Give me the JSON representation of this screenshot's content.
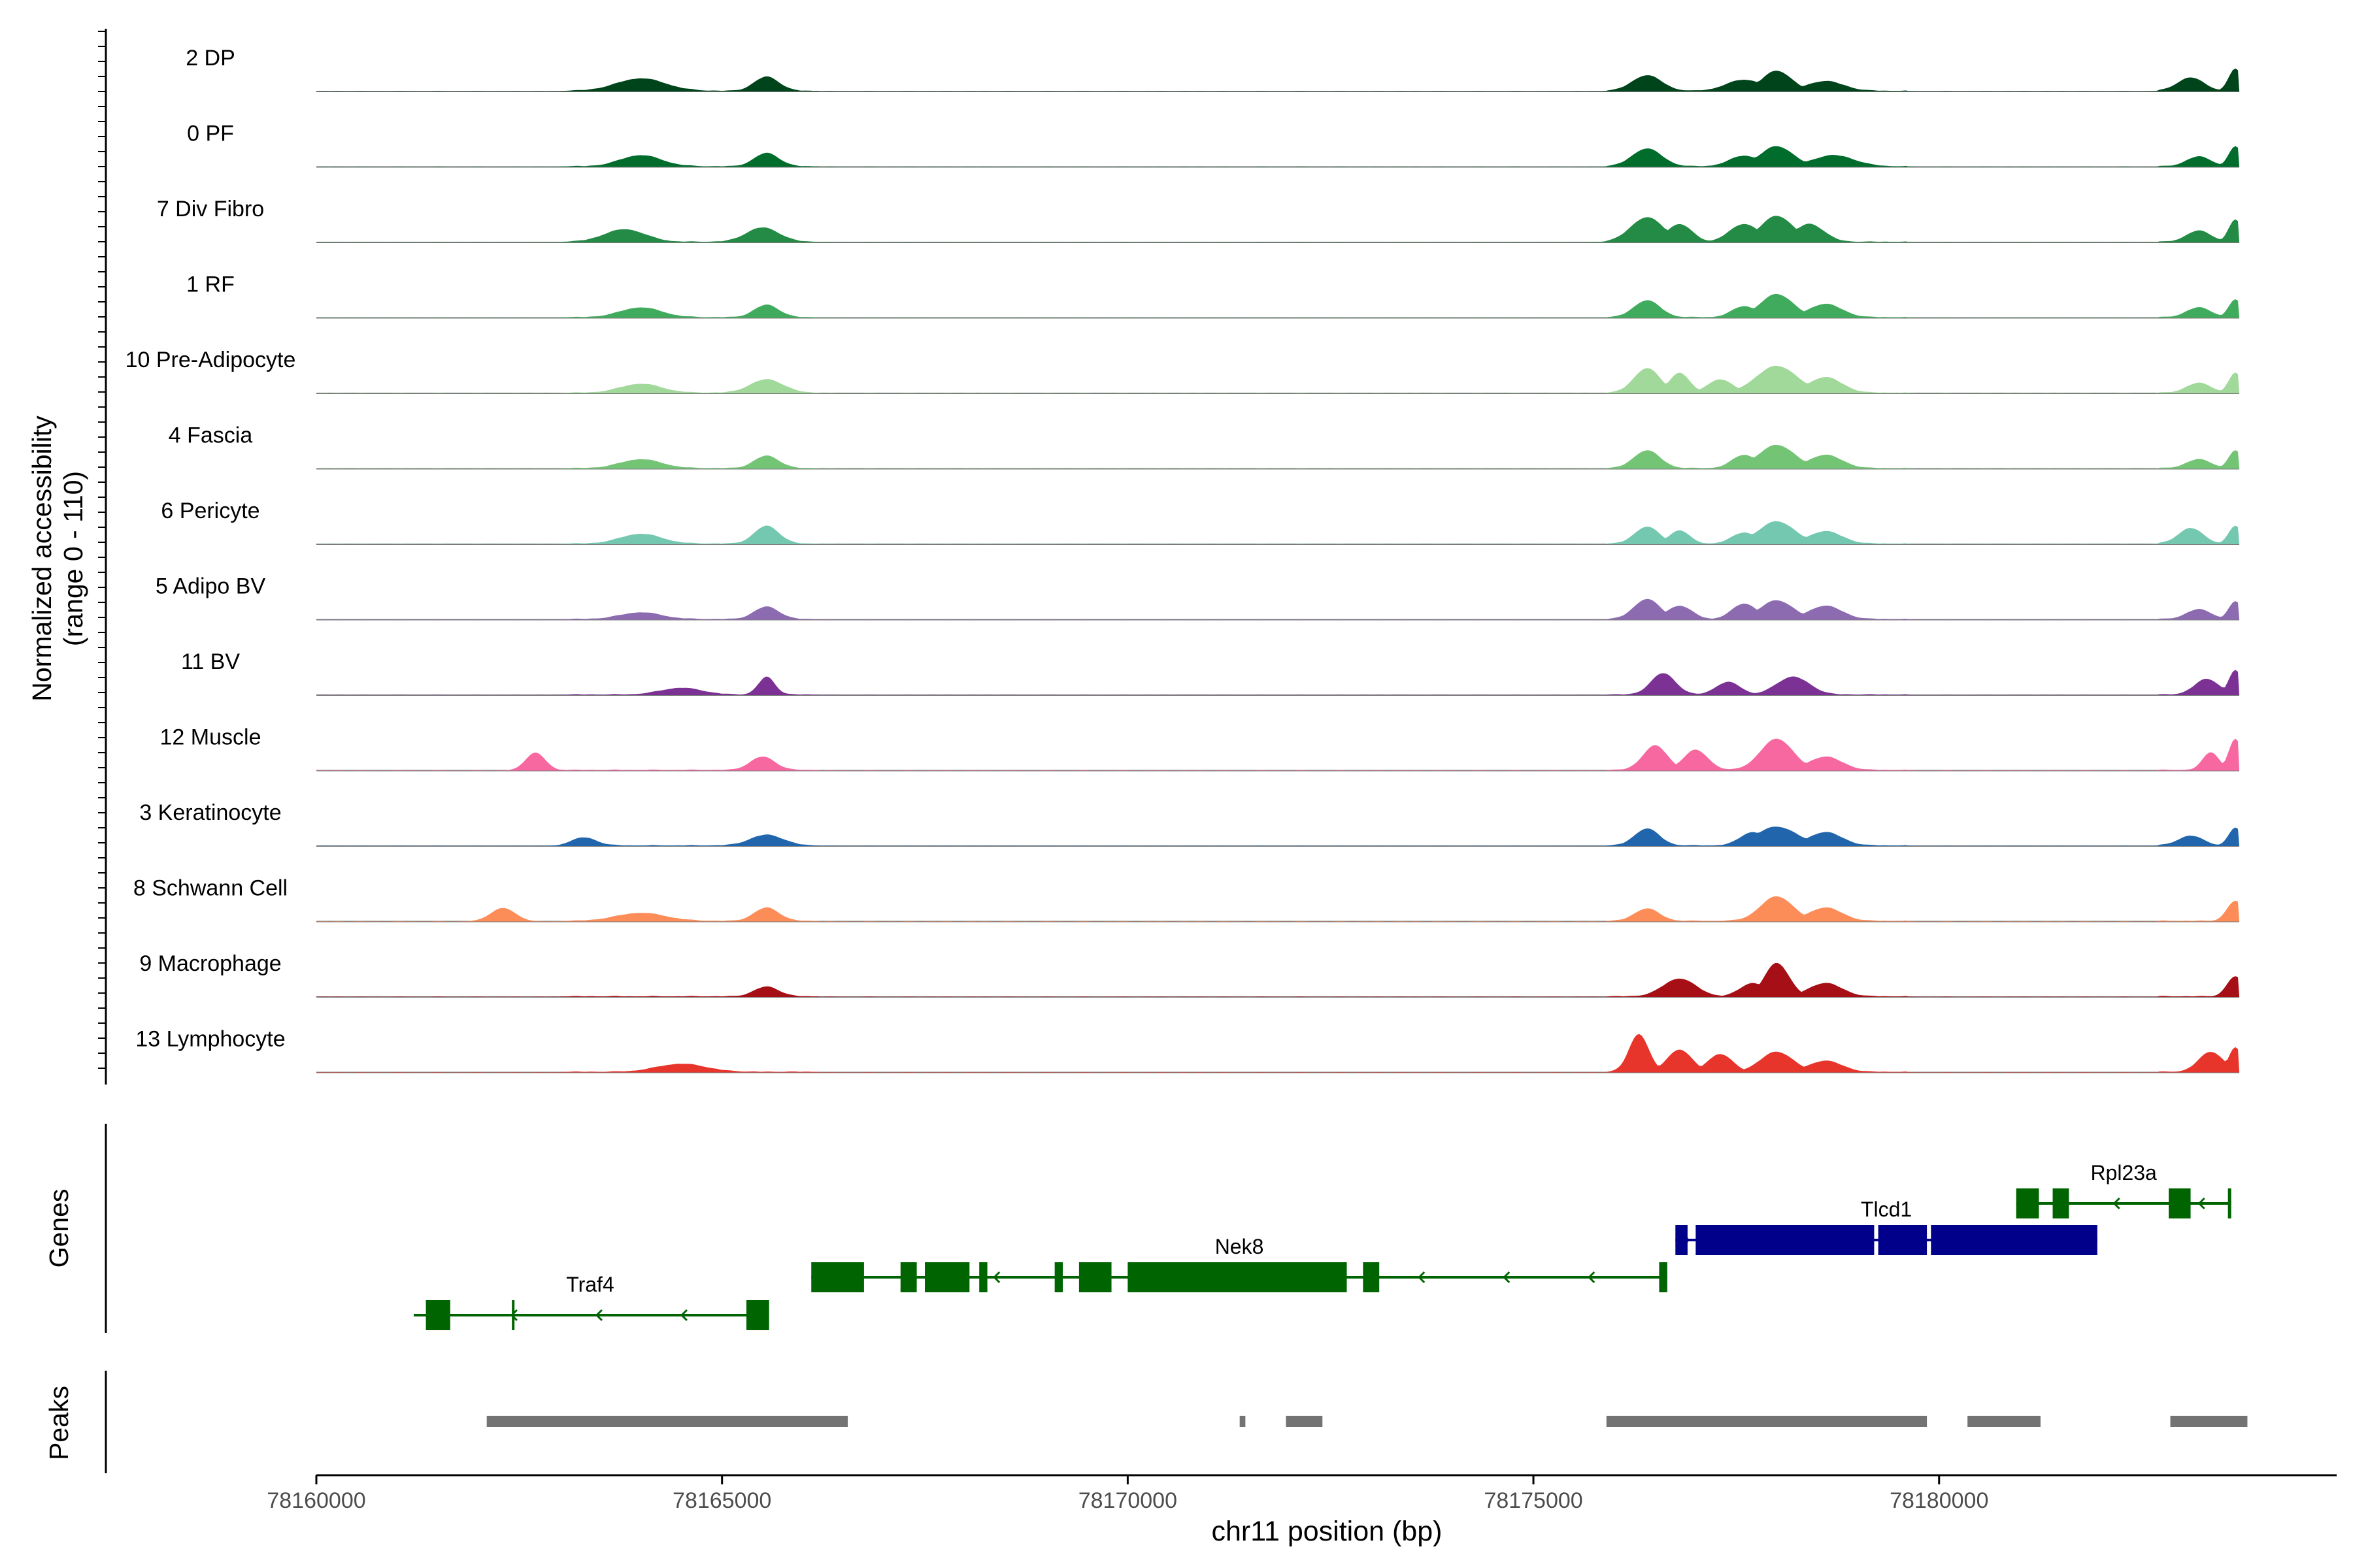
{
  "chart_data": {
    "type": "area",
    "title": "",
    "ylabel_line1": "Normalized accessibility",
    "ylabel_line2": "(range 0 - 110)",
    "xlabel": "chr11 position (bp)",
    "x_range": [
      78160000,
      78184900
    ],
    "x_ticks": [
      78160000,
      78165000,
      78170000,
      78175000,
      78180000
    ],
    "x_tick_labels": [
      "78160000",
      "78165000",
      "78170000",
      "78175000",
      "78180000"
    ],
    "y_range": [
      0,
      110
    ],
    "coverage_end": 78183700,
    "tracks": [
      {
        "name": "2 DP",
        "color": "#00441b",
        "peaks": [
          [
            78164000,
            28,
            300
          ],
          [
            78165550,
            32,
            150
          ],
          [
            78176400,
            35,
            180
          ],
          [
            78177600,
            25,
            220
          ],
          [
            78178000,
            45,
            180
          ],
          [
            78178600,
            22,
            220
          ],
          [
            78183100,
            30,
            160
          ],
          [
            78183650,
            50,
            80
          ]
        ]
      },
      {
        "name": "0 PF",
        "color": "#006d2c",
        "peaks": [
          [
            78164000,
            25,
            250
          ],
          [
            78165550,
            30,
            150
          ],
          [
            78176400,
            40,
            180
          ],
          [
            78177600,
            24,
            180
          ],
          [
            78178000,
            45,
            200
          ],
          [
            78178700,
            25,
            250
          ],
          [
            78183200,
            22,
            150
          ],
          [
            78183650,
            45,
            80
          ]
        ]
      },
      {
        "name": "7 Div Fibro",
        "color": "#238b45",
        "peaks": [
          [
            78163800,
            28,
            250
          ],
          [
            78165500,
            32,
            200
          ],
          [
            78176400,
            55,
            200
          ],
          [
            78176800,
            40,
            150
          ],
          [
            78177600,
            40,
            180
          ],
          [
            78178000,
            58,
            200
          ],
          [
            78178400,
            40,
            180
          ],
          [
            78183200,
            25,
            150
          ],
          [
            78183650,
            50,
            80
          ]
        ]
      },
      {
        "name": "1 RF",
        "color": "#41ab5d",
        "peaks": [
          [
            78164000,
            22,
            250
          ],
          [
            78165550,
            28,
            150
          ],
          [
            78176400,
            38,
            160
          ],
          [
            78177600,
            25,
            150
          ],
          [
            78178000,
            52,
            200
          ],
          [
            78178600,
            30,
            200
          ],
          [
            78183200,
            22,
            150
          ],
          [
            78183650,
            40,
            80
          ]
        ]
      },
      {
        "name": "10 Pre-Adipocyte",
        "color": "#a1d99b",
        "peaks": [
          [
            78164000,
            20,
            250
          ],
          [
            78165550,
            30,
            200
          ],
          [
            78176400,
            55,
            160
          ],
          [
            78176800,
            45,
            120
          ],
          [
            78177300,
            30,
            150
          ],
          [
            78178000,
            60,
            250
          ],
          [
            78178600,
            35,
            200
          ],
          [
            78183200,
            22,
            150
          ],
          [
            78183650,
            45,
            80
          ]
        ]
      },
      {
        "name": "4 Fascia",
        "color": "#74c476",
        "peaks": [
          [
            78164000,
            20,
            250
          ],
          [
            78165550,
            28,
            150
          ],
          [
            78176400,
            40,
            160
          ],
          [
            78177600,
            30,
            150
          ],
          [
            78178000,
            52,
            220
          ],
          [
            78178600,
            30,
            200
          ],
          [
            78183200,
            20,
            150
          ],
          [
            78183650,
            40,
            80
          ]
        ]
      },
      {
        "name": "6 Pericyte",
        "color": "#74c8b0",
        "peaks": [
          [
            78164000,
            22,
            250
          ],
          [
            78165550,
            40,
            150
          ],
          [
            78176400,
            38,
            150
          ],
          [
            78176800,
            30,
            120
          ],
          [
            78177600,
            25,
            150
          ],
          [
            78178000,
            50,
            220
          ],
          [
            78178600,
            28,
            200
          ],
          [
            78183100,
            35,
            150
          ],
          [
            78183650,
            40,
            80
          ]
        ]
      },
      {
        "name": "5 Adipo BV",
        "color": "#8c6bb1",
        "peaks": [
          [
            78164000,
            15,
            250
          ],
          [
            78165550,
            28,
            150
          ],
          [
            78176400,
            45,
            160
          ],
          [
            78176800,
            30,
            150
          ],
          [
            78177600,
            35,
            150
          ],
          [
            78178000,
            42,
            200
          ],
          [
            78178600,
            30,
            200
          ],
          [
            78183200,
            22,
            150
          ],
          [
            78183650,
            40,
            80
          ]
        ]
      },
      {
        "name": "11 BV",
        "color": "#7b3294",
        "peaks": [
          [
            78164500,
            15,
            250
          ],
          [
            78165550,
            40,
            100
          ],
          [
            78176600,
            48,
            150
          ],
          [
            78177400,
            28,
            150
          ],
          [
            78178200,
            40,
            200
          ],
          [
            78183300,
            35,
            150
          ],
          [
            78183650,
            55,
            80
          ]
        ]
      },
      {
        "name": "12 Muscle",
        "color": "#f768a1",
        "peaks": [
          [
            78162700,
            40,
            120
          ],
          [
            78165500,
            30,
            150
          ],
          [
            78176500,
            55,
            150
          ],
          [
            78177000,
            45,
            150
          ],
          [
            78178000,
            70,
            200
          ],
          [
            78178600,
            30,
            200
          ],
          [
            78183350,
            40,
            100
          ],
          [
            78183650,
            70,
            80
          ]
        ]
      },
      {
        "name": "3 Keratinocyte",
        "color": "#2166ac",
        "peaks": [
          [
            78163300,
            18,
            150
          ],
          [
            78165550,
            24,
            200
          ],
          [
            78176400,
            38,
            150
          ],
          [
            78177700,
            30,
            150
          ],
          [
            78178000,
            42,
            250
          ],
          [
            78178600,
            30,
            200
          ],
          [
            78183100,
            22,
            150
          ],
          [
            78183650,
            40,
            80
          ]
        ]
      },
      {
        "name": "8 Schwann Cell",
        "color": "#fc8d59",
        "peaks": [
          [
            78162300,
            30,
            150
          ],
          [
            78164000,
            18,
            300
          ],
          [
            78165550,
            30,
            150
          ],
          [
            78176400,
            28,
            150
          ],
          [
            78178000,
            55,
            200
          ],
          [
            78178600,
            30,
            200
          ],
          [
            78183650,
            45,
            100
          ]
        ]
      },
      {
        "name": "9 Macrophage",
        "color": "#a50f15",
        "peaks": [
          [
            78165550,
            22,
            150
          ],
          [
            78176800,
            40,
            200
          ],
          [
            78177700,
            30,
            150
          ],
          [
            78178000,
            75,
            150
          ],
          [
            78178600,
            30,
            200
          ],
          [
            78183650,
            45,
            100
          ]
        ]
      },
      {
        "name": "13 Lymphocyte",
        "color": "#e8352b",
        "peaks": [
          [
            78164500,
            18,
            300
          ],
          [
            78176300,
            85,
            120
          ],
          [
            78176800,
            50,
            150
          ],
          [
            78177300,
            40,
            150
          ],
          [
            78178000,
            45,
            200
          ],
          [
            78178600,
            25,
            200
          ],
          [
            78183350,
            45,
            150
          ],
          [
            78183650,
            55,
            80
          ]
        ]
      }
    ],
    "genes": [
      {
        "name": "Traf4",
        "color": "#006400",
        "strand": "-",
        "start": 78161200,
        "end": 78165550,
        "row": 2,
        "exons": [
          [
            78161350,
            78161650
          ],
          [
            78162410,
            78162440
          ],
          [
            78165300,
            78165580
          ]
        ]
      },
      {
        "name": "Nek8",
        "color": "#006400",
        "strand": "-",
        "start": 78166100,
        "end": 78176650,
        "row": 1,
        "exons": [
          [
            78166100,
            78166750
          ],
          [
            78167200,
            78167400
          ],
          [
            78167500,
            78168050
          ],
          [
            78168170,
            78168270
          ],
          [
            78169100,
            78169200
          ],
          [
            78169400,
            78169800
          ],
          [
            78170000,
            78172700
          ],
          [
            78172900,
            78173100
          ],
          [
            78176550,
            78176650
          ]
        ]
      },
      {
        "name": "Tlcd1",
        "color": "#00008b",
        "strand": "+",
        "start": 78176750,
        "end": 78181950,
        "row": 0,
        "exons": [
          [
            78176750,
            78176900
          ],
          [
            78177000,
            78179200
          ],
          [
            78179250,
            78179850
          ],
          [
            78179900,
            78181950
          ]
        ]
      },
      {
        "name": "Rpl23a",
        "color": "#006400",
        "strand": "-",
        "start": 78180950,
        "end": 78183600,
        "row": -1,
        "exons": [
          [
            78180950,
            78181230
          ],
          [
            78181400,
            78181600
          ],
          [
            78182830,
            78183100
          ],
          [
            78183560,
            78183600
          ]
        ]
      }
    ],
    "peak_regions": [
      [
        78162100,
        78166550
      ],
      [
        78171380,
        78171450
      ],
      [
        78171950,
        78172400
      ],
      [
        78175900,
        78179850
      ],
      [
        78180350,
        78181250
      ],
      [
        78182850,
        78183800
      ]
    ],
    "panel_labels": {
      "genes": "Genes",
      "peaks": "Peaks"
    }
  }
}
